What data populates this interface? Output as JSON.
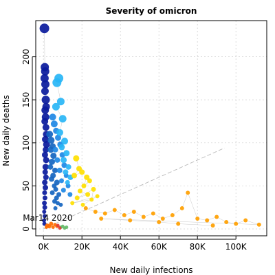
{
  "chart_data": {
    "type": "scatter",
    "title": "Severity of omicron",
    "xlabel": "New daily infections",
    "ylabel": "New daily deaths",
    "xlim": [
      -4000,
      116000
    ],
    "ylim": [
      -8,
      242
    ],
    "x_ticks": [
      0,
      20000,
      40000,
      60000,
      80000,
      100000
    ],
    "x_tick_labels": [
      "0K",
      "20K",
      "40K",
      "60K",
      "80K",
      "100K"
    ],
    "y_ticks": [
      0,
      50,
      100,
      150,
      200
    ],
    "y_tick_labels": [
      "0",
      "50",
      "100",
      "150",
      "200"
    ],
    "grid": true,
    "legend": "none",
    "reference_line": "y = x / 1000 (dashed diagonal)",
    "annotation": {
      "text": "Mar14 2020",
      "x": 0,
      "y": 0
    },
    "color_scale": [
      "#00008b",
      "#1e90ff",
      "#00bfff",
      "#ffd700",
      "#ffa500",
      "#ff8c00"
    ],
    "series": [
      {
        "color": "#0a1a9c",
        "points": [
          [
            500,
            233,
            11
          ],
          [
            700,
            188,
            9
          ],
          [
            900,
            183,
            9
          ],
          [
            600,
            175,
            9
          ],
          [
            1000,
            168,
            9
          ],
          [
            800,
            160,
            8
          ],
          [
            1200,
            150,
            9
          ],
          [
            1400,
            142,
            8
          ],
          [
            900,
            138,
            8
          ],
          [
            1100,
            130,
            8
          ],
          [
            700,
            125,
            7
          ],
          [
            1300,
            118,
            7
          ],
          [
            1500,
            110,
            7
          ],
          [
            1000,
            104,
            7
          ],
          [
            1600,
            98,
            7
          ],
          [
            1200,
            92,
            6
          ],
          [
            800,
            86,
            6
          ],
          [
            1400,
            80,
            6
          ],
          [
            1100,
            72,
            6
          ],
          [
            900,
            66,
            5
          ],
          [
            1300,
            60,
            5
          ],
          [
            700,
            54,
            5
          ],
          [
            1000,
            48,
            5
          ],
          [
            600,
            42,
            4
          ],
          [
            800,
            36,
            4
          ],
          [
            500,
            30,
            4
          ],
          [
            700,
            25,
            4
          ],
          [
            400,
            20,
            3
          ],
          [
            600,
            15,
            3
          ],
          [
            300,
            10,
            3
          ],
          [
            500,
            6,
            3
          ]
        ]
      },
      {
        "color": "#1565c0",
        "points": [
          [
            3200,
            110,
            7
          ],
          [
            4000,
            103,
            7
          ],
          [
            4800,
            96,
            6
          ],
          [
            3800,
            92,
            6
          ],
          [
            5200,
            85,
            6
          ],
          [
            4400,
            78,
            6
          ],
          [
            3600,
            72,
            5
          ],
          [
            6000,
            68,
            5
          ],
          [
            5000,
            62,
            5
          ],
          [
            4200,
            58,
            5
          ],
          [
            7000,
            54,
            5
          ],
          [
            5600,
            50,
            4
          ],
          [
            6400,
            46,
            4
          ],
          [
            4600,
            42,
            4
          ],
          [
            8000,
            40,
            4
          ],
          [
            6800,
            36,
            4
          ],
          [
            5800,
            32,
            4
          ],
          [
            7400,
            30,
            3
          ],
          [
            9000,
            28,
            3
          ],
          [
            6200,
            24,
            3
          ]
        ]
      },
      {
        "color": "#1e88e5",
        "points": [
          [
            4800,
            130,
            7
          ],
          [
            5600,
            122,
            7
          ],
          [
            6600,
            114,
            6
          ],
          [
            7600,
            106,
            6
          ],
          [
            8800,
            98,
            6
          ],
          [
            6200,
            92,
            5
          ],
          [
            9800,
            86,
            5
          ],
          [
            7200,
            80,
            5
          ],
          [
            10800,
            74,
            5
          ],
          [
            8400,
            68,
            5
          ],
          [
            11800,
            62,
            4
          ],
          [
            9400,
            56,
            4
          ],
          [
            12800,
            50,
            4
          ],
          [
            10400,
            45,
            4
          ],
          [
            13800,
            40,
            4
          ]
        ]
      },
      {
        "color": "#29b6f6",
        "points": [
          [
            8000,
            175,
            10
          ],
          [
            7000,
            170,
            10
          ],
          [
            9000,
            148,
            8
          ],
          [
            6500,
            142,
            8
          ],
          [
            10000,
            128,
            8
          ],
          [
            8500,
            112,
            7
          ],
          [
            11000,
            102,
            7
          ],
          [
            9500,
            95,
            6
          ],
          [
            12000,
            88,
            6
          ],
          [
            10500,
            80,
            6
          ],
          [
            13000,
            72,
            5
          ],
          [
            11500,
            66,
            5
          ],
          [
            14000,
            60,
            5
          ],
          [
            12500,
            54,
            4
          ]
        ]
      },
      {
        "color": "#ffe000",
        "points": [
          [
            17000,
            82,
            6
          ],
          [
            18500,
            70,
            5
          ],
          [
            16000,
            62,
            5
          ],
          [
            20000,
            66,
            5
          ],
          [
            22500,
            60,
            5
          ],
          [
            21000,
            50,
            4
          ],
          [
            24000,
            56,
            4
          ],
          [
            19000,
            44,
            4
          ],
          [
            23000,
            40,
            4
          ],
          [
            17500,
            36,
            4
          ],
          [
            26000,
            46,
            4
          ],
          [
            25000,
            34,
            3
          ],
          [
            15000,
            30,
            3
          ],
          [
            28000,
            38,
            3
          ],
          [
            20500,
            28,
            3
          ]
        ]
      },
      {
        "color": "#ffa000",
        "points": [
          [
            22000,
            24,
            3
          ],
          [
            27000,
            20,
            3
          ],
          [
            32000,
            18,
            3
          ],
          [
            37000,
            22,
            3
          ],
          [
            42000,
            16,
            3
          ],
          [
            47000,
            20,
            3
          ],
          [
            52000,
            14,
            3
          ],
          [
            57000,
            18,
            3
          ],
          [
            62000,
            12,
            3
          ],
          [
            67000,
            16,
            3
          ],
          [
            72000,
            24,
            3
          ],
          [
            75000,
            42,
            3
          ],
          [
            80000,
            12,
            3
          ],
          [
            85000,
            10,
            3
          ],
          [
            90000,
            14,
            3
          ],
          [
            95000,
            8,
            3
          ],
          [
            100000,
            6,
            3
          ],
          [
            105000,
            10,
            3
          ],
          [
            112000,
            5,
            3
          ],
          [
            30000,
            12,
            3
          ],
          [
            45000,
            10,
            3
          ],
          [
            60000,
            8,
            3
          ],
          [
            70000,
            6,
            3
          ],
          [
            88000,
            4,
            3
          ]
        ]
      },
      {
        "color": "#ff6d00",
        "points": [
          [
            2000,
            4,
            3
          ],
          [
            3000,
            3,
            3
          ],
          [
            4000,
            6,
            3
          ],
          [
            5000,
            2,
            2
          ],
          [
            6000,
            5,
            2
          ],
          [
            7000,
            3,
            2
          ],
          [
            1500,
            2,
            2
          ]
        ]
      },
      {
        "color": "#66bb6a",
        "points": [
          [
            9000,
            2,
            2
          ],
          [
            10000,
            3,
            2
          ],
          [
            11000,
            1,
            2
          ],
          [
            12000,
            2,
            2
          ]
        ]
      },
      {
        "color": "#e53935",
        "points": [
          [
            7500,
            4,
            2
          ],
          [
            8500,
            1,
            2
          ]
        ]
      }
    ]
  }
}
